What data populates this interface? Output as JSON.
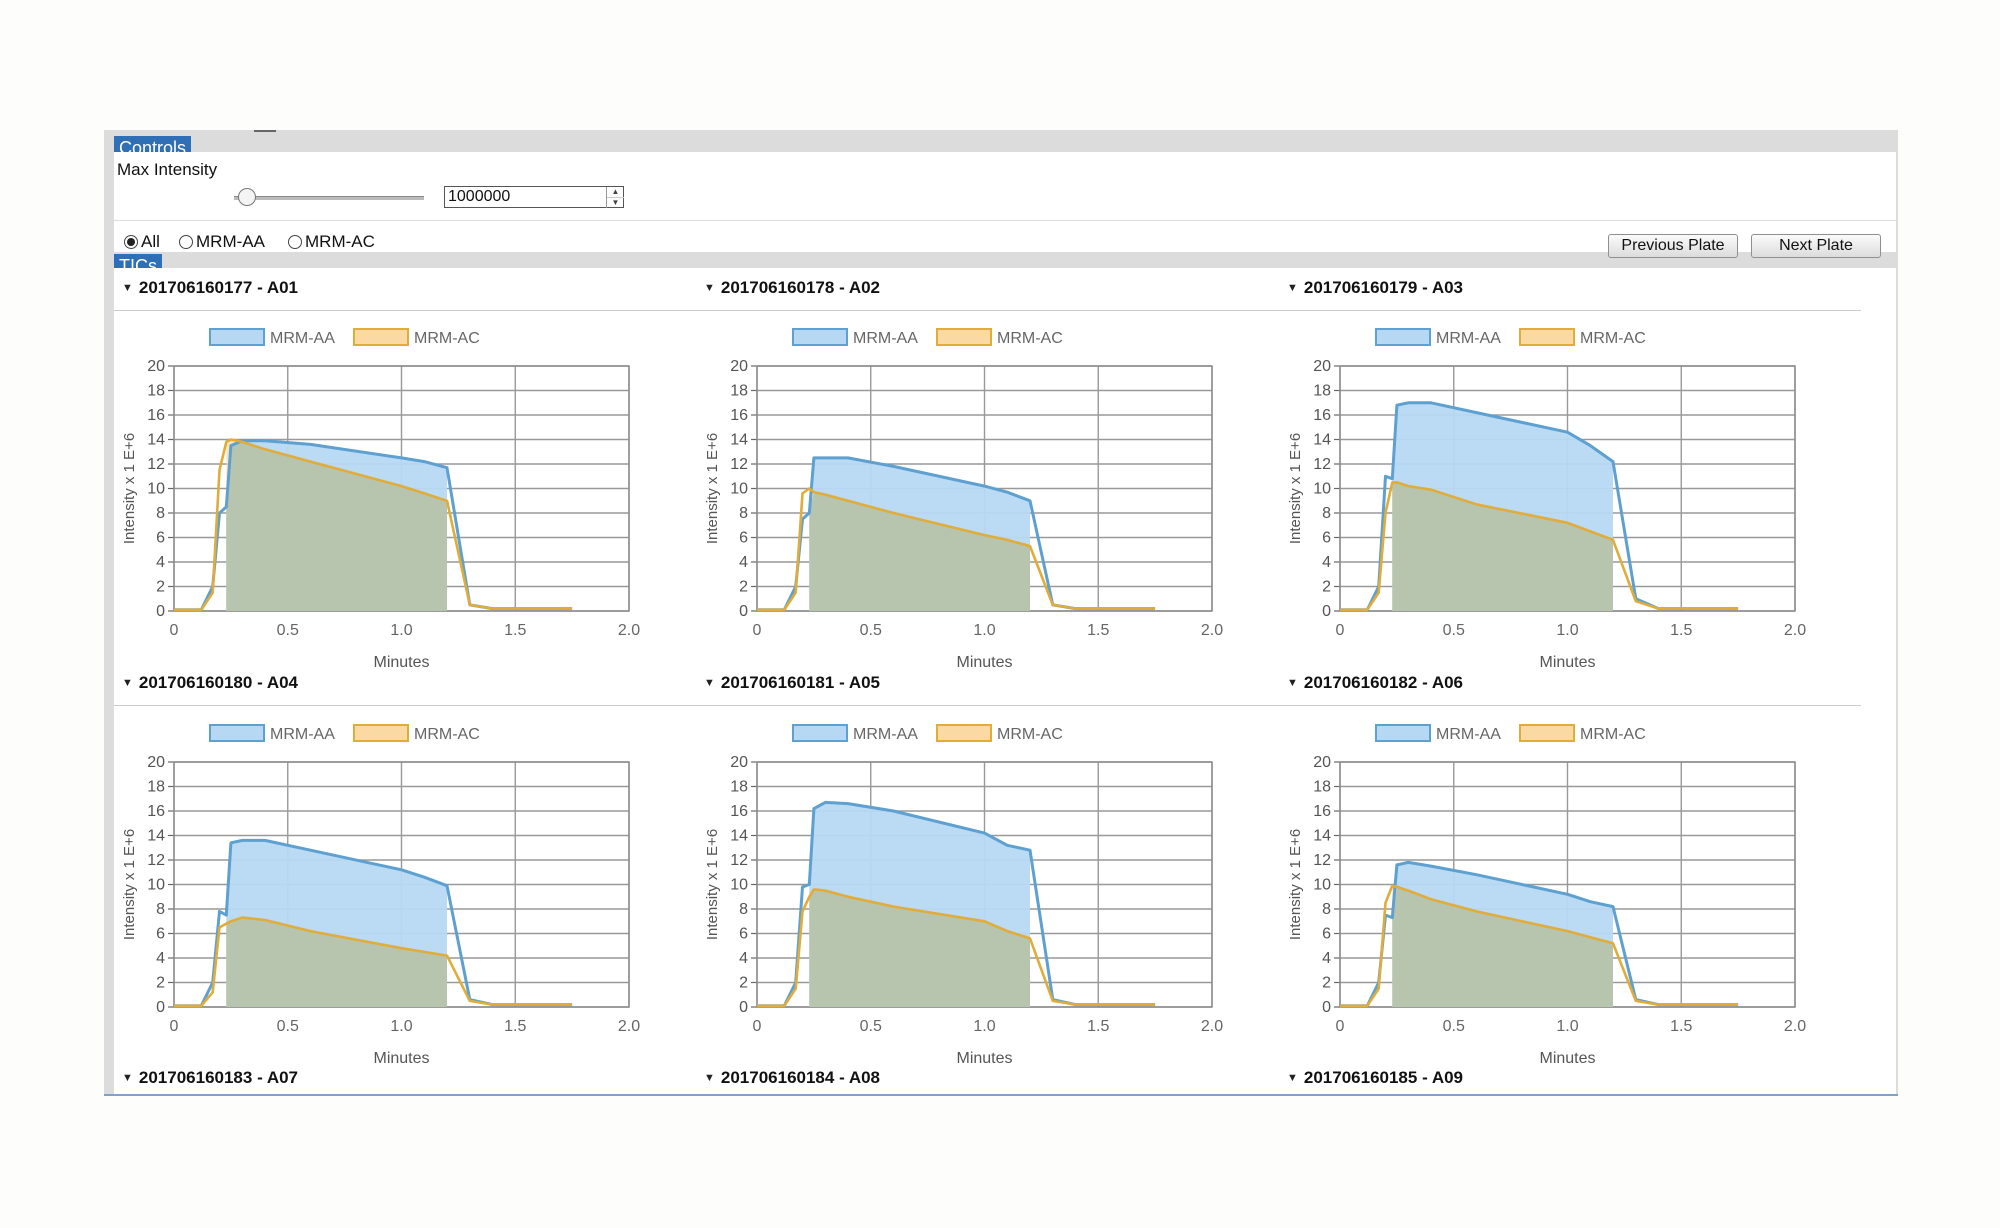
{
  "controls": {
    "tab_label": "Controls",
    "max_intensity_label": "Max Intensity",
    "max_intensity_value": "1000000",
    "slider_level": 0.03,
    "radios": [
      {
        "label": "All",
        "selected": true
      },
      {
        "label": "MRM-AA",
        "selected": false
      },
      {
        "label": "MRM-AC",
        "selected": false
      }
    ],
    "previous_label": "Previous Plate",
    "next_label": "Next Plate"
  },
  "tics": {
    "tab_label": "TICs",
    "plates": [
      {
        "label": "201706160177 - A01"
      },
      {
        "label": "201706160178 - A02"
      },
      {
        "label": "201706160179 - A03"
      },
      {
        "label": "201706160180 - A04"
      },
      {
        "label": "201706160181 - A05"
      },
      {
        "label": "201706160182 - A06"
      },
      {
        "label": "201706160183 - A07"
      },
      {
        "label": "201706160184 - A08"
      },
      {
        "label": "201706160185 - A09"
      }
    ]
  },
  "colors": {
    "aa_line": "#5ea0d0",
    "aa_fill": "#b7d8f2",
    "ac_line": "#e0ac3a",
    "ac_fill": "#fad9a3",
    "overlap_fill": "#b5c4ad"
  },
  "chart_data": [
    {
      "type": "area",
      "xlabel": "Minutes",
      "ylabel": "Intensity x 1 E+6",
      "xlim": [
        0,
        2.0
      ],
      "ylim": [
        0,
        20
      ],
      "xticks": [
        "0",
        "0.5",
        "1.0",
        "1.5",
        "2.0"
      ],
      "yticks": [
        "0",
        "2",
        "4",
        "6",
        "8",
        "10",
        "12",
        "14",
        "16",
        "18",
        "20"
      ],
      "grid": true,
      "legend": "top",
      "series": [
        {
          "name": "MRM-AA",
          "x": [
            0,
            0.12,
            0.17,
            0.2,
            0.23,
            0.25,
            0.3,
            0.4,
            0.6,
            1.0,
            1.1,
            1.2,
            1.3,
            1.4,
            1.75
          ],
          "y": [
            0.1,
            0.1,
            2,
            8,
            8.5,
            13.5,
            13.9,
            13.9,
            13.6,
            12.5,
            12.2,
            11.7,
            0.5,
            0.2,
            0.2
          ]
        },
        {
          "name": "MRM-AC",
          "x": [
            0,
            0.12,
            0.17,
            0.2,
            0.23,
            0.25,
            0.3,
            0.4,
            0.6,
            1.0,
            1.1,
            1.2,
            1.3,
            1.4,
            1.75
          ],
          "y": [
            0.1,
            0.1,
            1.5,
            11.5,
            13.8,
            14,
            13.8,
            13.2,
            12.2,
            10.2,
            9.6,
            9,
            0.5,
            0.2,
            0.2
          ]
        }
      ]
    },
    {
      "type": "area",
      "xlabel": "Minutes",
      "ylabel": "Intensity x 1 E+6",
      "xlim": [
        0,
        2.0
      ],
      "ylim": [
        0,
        20
      ],
      "xticks": [
        "0",
        "0.5",
        "1.0",
        "1.5",
        "2.0"
      ],
      "yticks": [
        "0",
        "2",
        "4",
        "6",
        "8",
        "10",
        "12",
        "14",
        "16",
        "18",
        "20"
      ],
      "grid": true,
      "legend": "top",
      "series": [
        {
          "name": "MRM-AA",
          "x": [
            0,
            0.12,
            0.17,
            0.2,
            0.23,
            0.25,
            0.3,
            0.4,
            0.6,
            1.0,
            1.1,
            1.2,
            1.3,
            1.4,
            1.75
          ],
          "y": [
            0.1,
            0.1,
            2,
            7.5,
            8,
            12.5,
            12.5,
            12.5,
            11.8,
            10.2,
            9.7,
            9,
            0.5,
            0.2,
            0.2
          ]
        },
        {
          "name": "MRM-AC",
          "x": [
            0,
            0.12,
            0.17,
            0.2,
            0.23,
            0.25,
            0.3,
            0.4,
            0.6,
            1.0,
            1.1,
            1.2,
            1.3,
            1.4,
            1.75
          ],
          "y": [
            0.1,
            0.1,
            1.5,
            9.6,
            10,
            9.7,
            9.5,
            9,
            8,
            6.2,
            5.8,
            5.3,
            0.5,
            0.2,
            0.2
          ]
        }
      ]
    },
    {
      "type": "area",
      "xlabel": "Minutes",
      "ylabel": "Intensity x 1 E+6",
      "xlim": [
        0,
        2.0
      ],
      "ylim": [
        0,
        20
      ],
      "xticks": [
        "0",
        "0.5",
        "1.0",
        "1.5",
        "2.0"
      ],
      "yticks": [
        "0",
        "2",
        "4",
        "6",
        "8",
        "10",
        "12",
        "14",
        "16",
        "18",
        "20"
      ],
      "grid": true,
      "legend": "top",
      "series": [
        {
          "name": "MRM-AA",
          "x": [
            0,
            0.12,
            0.17,
            0.2,
            0.23,
            0.25,
            0.3,
            0.4,
            0.6,
            1.0,
            1.1,
            1.2,
            1.3,
            1.4,
            1.75
          ],
          "y": [
            0.1,
            0.1,
            2,
            11,
            10.8,
            16.8,
            17,
            17,
            16.2,
            14.6,
            13.5,
            12.2,
            1,
            0.2,
            0.2
          ]
        },
        {
          "name": "MRM-AC",
          "x": [
            0,
            0.12,
            0.17,
            0.2,
            0.23,
            0.25,
            0.3,
            0.4,
            0.6,
            1.0,
            1.1,
            1.2,
            1.3,
            1.4,
            1.75
          ],
          "y": [
            0.1,
            0.1,
            1.5,
            8,
            10.5,
            10.5,
            10.2,
            9.9,
            8.7,
            7.2,
            6.5,
            5.8,
            0.8,
            0.2,
            0.2
          ]
        }
      ]
    },
    {
      "type": "area",
      "xlabel": "Minutes",
      "ylabel": "Intensity x 1 E+6",
      "xlim": [
        0,
        2.0
      ],
      "ylim": [
        0,
        20
      ],
      "xticks": [
        "0",
        "0.5",
        "1.0",
        "1.5",
        "2.0"
      ],
      "yticks": [
        "0",
        "2",
        "4",
        "6",
        "8",
        "10",
        "12",
        "14",
        "16",
        "18",
        "20"
      ],
      "grid": true,
      "legend": "top",
      "series": [
        {
          "name": "MRM-AA",
          "x": [
            0,
            0.12,
            0.17,
            0.2,
            0.23,
            0.25,
            0.3,
            0.4,
            0.6,
            1.0,
            1.1,
            1.2,
            1.3,
            1.4,
            1.75
          ],
          "y": [
            0.1,
            0.1,
            2,
            7.8,
            7.5,
            13.4,
            13.6,
            13.6,
            12.8,
            11.2,
            10.6,
            9.9,
            0.6,
            0.2,
            0.2
          ]
        },
        {
          "name": "MRM-AC",
          "x": [
            0,
            0.12,
            0.17,
            0.2,
            0.23,
            0.25,
            0.3,
            0.4,
            0.6,
            1.0,
            1.1,
            1.2,
            1.3,
            1.4,
            1.75
          ],
          "y": [
            0.1,
            0.1,
            1.2,
            6.5,
            6.8,
            7,
            7.3,
            7.1,
            6.2,
            4.8,
            4.5,
            4.2,
            0.5,
            0.2,
            0.2
          ]
        }
      ]
    },
    {
      "type": "area",
      "xlabel": "Minutes",
      "ylabel": "Intensity x 1 E+6",
      "xlim": [
        0,
        2.0
      ],
      "ylim": [
        0,
        20
      ],
      "xticks": [
        "0",
        "0.5",
        "1.0",
        "1.5",
        "2.0"
      ],
      "yticks": [
        "0",
        "2",
        "4",
        "6",
        "8",
        "10",
        "12",
        "14",
        "16",
        "18",
        "20"
      ],
      "grid": true,
      "legend": "top",
      "series": [
        {
          "name": "MRM-AA",
          "x": [
            0,
            0.12,
            0.17,
            0.2,
            0.23,
            0.25,
            0.3,
            0.4,
            0.6,
            1.0,
            1.1,
            1.2,
            1.3,
            1.4,
            1.75
          ],
          "y": [
            0.1,
            0.1,
            2,
            9.8,
            10,
            16.2,
            16.7,
            16.6,
            16,
            14.2,
            13.2,
            12.8,
            0.6,
            0.2,
            0.2
          ]
        },
        {
          "name": "MRM-AC",
          "x": [
            0,
            0.12,
            0.17,
            0.2,
            0.23,
            0.25,
            0.3,
            0.4,
            0.6,
            1.0,
            1.1,
            1.2,
            1.3,
            1.4,
            1.75
          ],
          "y": [
            0.1,
            0.1,
            1.5,
            7.8,
            9,
            9.6,
            9.5,
            9,
            8.2,
            7,
            6.2,
            5.6,
            0.5,
            0.2,
            0.2
          ]
        }
      ]
    },
    {
      "type": "area",
      "xlabel": "Minutes",
      "ylabel": "Intensity x 1 E+6",
      "xlim": [
        0,
        2.0
      ],
      "ylim": [
        0,
        20
      ],
      "xticks": [
        "0",
        "0.5",
        "1.0",
        "1.5",
        "2.0"
      ],
      "yticks": [
        "0",
        "2",
        "4",
        "6",
        "8",
        "10",
        "12",
        "14",
        "16",
        "18",
        "20"
      ],
      "grid": true,
      "legend": "top",
      "series": [
        {
          "name": "MRM-AA",
          "x": [
            0,
            0.12,
            0.17,
            0.2,
            0.23,
            0.25,
            0.3,
            0.4,
            0.6,
            1.0,
            1.1,
            1.2,
            1.3,
            1.4,
            1.75
          ],
          "y": [
            0.1,
            0.1,
            2,
            7.5,
            7.3,
            11.6,
            11.8,
            11.5,
            10.8,
            9.2,
            8.6,
            8.2,
            0.6,
            0.2,
            0.2
          ]
        },
        {
          "name": "MRM-AC",
          "x": [
            0,
            0.12,
            0.17,
            0.2,
            0.23,
            0.25,
            0.3,
            0.4,
            0.6,
            1.0,
            1.1,
            1.2,
            1.3,
            1.4,
            1.75
          ],
          "y": [
            0.1,
            0.1,
            1.5,
            8.5,
            9.9,
            9.8,
            9.5,
            8.8,
            7.8,
            6.2,
            5.7,
            5.2,
            0.5,
            0.2,
            0.2
          ]
        }
      ]
    }
  ]
}
